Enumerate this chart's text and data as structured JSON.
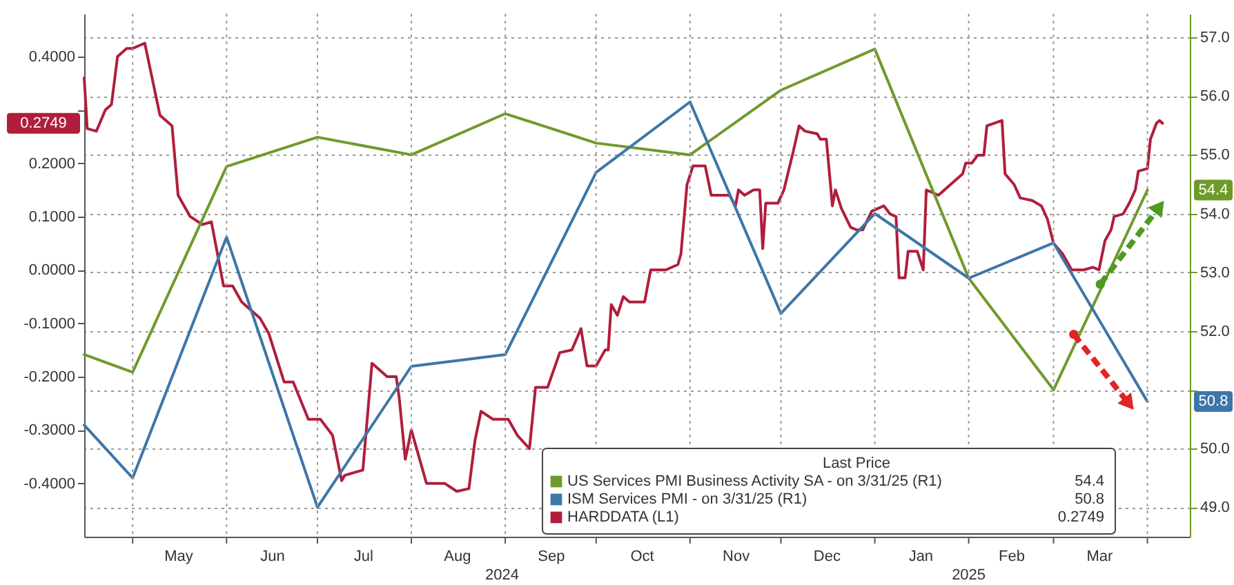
{
  "chart_data": {
    "type": "line",
    "grid": true,
    "legend": "bottom right",
    "legend_title": "Last Price",
    "xlim": [
      "2024-04-15",
      "2025-04-15"
    ],
    "xticks": [
      {
        "value": "2024-05-01",
        "label": null
      },
      {
        "value": "2024-05-16",
        "label": "May"
      },
      {
        "value": "2024-06-01",
        "label": null
      },
      {
        "value": "2024-06-16",
        "label": "Jun"
      },
      {
        "value": "2024-07-01",
        "label": null
      },
      {
        "value": "2024-07-16",
        "label": "Jul"
      },
      {
        "value": "2024-08-01",
        "label": null
      },
      {
        "value": "2024-08-16",
        "label": "Aug"
      },
      {
        "value": "2024-09-01",
        "label": null
      },
      {
        "value": "2024-09-16",
        "label": "Sep"
      },
      {
        "value": "2024-10-01",
        "label": null
      },
      {
        "value": "2024-10-16",
        "label": "Oct"
      },
      {
        "value": "2024-11-01",
        "label": null
      },
      {
        "value": "2024-11-16",
        "label": "Nov"
      },
      {
        "value": "2024-12-01",
        "label": null
      },
      {
        "value": "2024-12-16",
        "label": "Dec"
      },
      {
        "value": "2025-01-01",
        "label": null
      },
      {
        "value": "2025-01-16",
        "label": "Jan"
      },
      {
        "value": "2025-02-01",
        "label": null
      },
      {
        "value": "2025-02-15",
        "label": "Feb"
      },
      {
        "value": "2025-03-01",
        "label": null
      },
      {
        "value": "2025-03-16",
        "label": "Mar"
      },
      {
        "value": "2025-04-01",
        "label": null
      }
    ],
    "ylim": [
      -0.5,
      0.48
    ],
    "yticks": [
      {
        "value": -0.4,
        "label": "-0.4000"
      },
      {
        "value": -0.3,
        "label": "-0.3000"
      },
      {
        "value": -0.2,
        "label": "-0.2000"
      },
      {
        "value": -0.1,
        "label": "-0.1000"
      },
      {
        "value": 0,
        "label": "0.0000"
      },
      {
        "value": 0.1,
        "label": "0.1000"
      },
      {
        "value": 0.2,
        "label": "0.2000"
      },
      {
        "value": 0.3,
        "label": null
      },
      {
        "value": 0.4,
        "label": "0.4000"
      }
    ],
    "y2lim": [
      48.5,
      57.4
    ],
    "y2ticks": [
      {
        "value": 49,
        "label": "49.0"
      },
      {
        "value": 50,
        "label": "50.0"
      },
      {
        "value": 51,
        "label": null
      },
      {
        "value": 52,
        "label": "52.0"
      },
      {
        "value": 53,
        "label": "53.0"
      },
      {
        "value": 54,
        "label": "54.0"
      },
      {
        "value": 55,
        "label": "55.0"
      },
      {
        "value": 56,
        "label": "56.0"
      },
      {
        "value": 57,
        "label": "57.0"
      }
    ],
    "series": [
      {
        "name": "US Services PMI Business Activity SA - on 3/31/25 (R1)",
        "color": "#6f9a2a",
        "axis": "y2",
        "x": [
          "2024-04-15",
          "2024-05-01",
          "2024-06-01",
          "2024-07-01",
          "2024-08-01",
          "2024-09-01",
          "2024-10-01",
          "2024-11-01",
          "2024-12-01",
          "2025-01-01",
          "2025-02-01",
          "2025-03-01",
          "2025-04-01"
        ],
        "values": [
          51.6,
          51.3,
          54.8,
          55.3,
          55.0,
          55.7,
          55.2,
          55.0,
          56.1,
          56.8,
          52.9,
          51.0,
          54.4
        ]
      },
      {
        "name": "ISM Services PMI - on 3/31/25 (R1)",
        "color": "#3d76a8",
        "axis": "y2",
        "x": [
          "2024-04-15",
          "2024-05-01",
          "2024-06-01",
          "2024-07-01",
          "2024-08-01",
          "2024-09-01",
          "2024-10-01",
          "2024-11-01",
          "2024-12-01",
          "2025-01-01",
          "2025-02-01",
          "2025-03-01",
          "2025-04-01"
        ],
        "values": [
          50.4,
          49.5,
          53.6,
          49.0,
          51.4,
          51.6,
          54.7,
          55.9,
          52.3,
          54.0,
          52.9,
          53.5,
          50.8
        ]
      },
      {
        "name": "HARDDATA (L1)",
        "color": "#b01e3c",
        "x": [
          "2024-04-15",
          "2024-04-16",
          "2024-04-19",
          "2024-04-22",
          "2024-04-24",
          "2024-04-26",
          "2024-04-29",
          "2024-05-01",
          "2024-05-05",
          "2024-05-10",
          "2024-05-14",
          "2024-05-16",
          "2024-05-20",
          "2024-05-24",
          "2024-05-27",
          "2024-05-31",
          "2024-06-03",
          "2024-06-06",
          "2024-06-12",
          "2024-06-15",
          "2024-06-20",
          "2024-06-23",
          "2024-06-28",
          "2024-07-02",
          "2024-07-06",
          "2024-07-09",
          "2024-07-10",
          "2024-07-13",
          "2024-07-16",
          "2024-07-19",
          "2024-07-24",
          "2024-07-27",
          "2024-07-28",
          "2024-07-30",
          "2024-08-01",
          "2024-08-06",
          "2024-08-12",
          "2024-08-16",
          "2024-08-20",
          "2024-08-22",
          "2024-08-24",
          "2024-08-28",
          "2024-09-02",
          "2024-09-05",
          "2024-09-09",
          "2024-09-11",
          "2024-09-15",
          "2024-09-19",
          "2024-09-23",
          "2024-09-26",
          "2024-09-28",
          "2024-10-01",
          "2024-10-04",
          "2024-10-05",
          "2024-10-06",
          "2024-10-08",
          "2024-10-10",
          "2024-10-12",
          "2024-10-17",
          "2024-10-19",
          "2024-10-24",
          "2024-10-28",
          "2024-10-29",
          "2024-10-31",
          "2024-11-02",
          "2024-11-06",
          "2024-11-08",
          "2024-11-14",
          "2024-11-16",
          "2024-11-17",
          "2024-11-19",
          "2024-11-22",
          "2024-11-24",
          "2024-11-25",
          "2024-11-26",
          "2024-11-30",
          "2024-12-02",
          "2024-12-05",
          "2024-12-07",
          "2024-12-09",
          "2024-12-13",
          "2024-12-14",
          "2024-12-16",
          "2024-12-18",
          "2024-12-19",
          "2024-12-21",
          "2024-12-24",
          "2024-12-26",
          "2024-12-28",
          "2024-12-31",
          "2025-01-04",
          "2025-01-06",
          "2025-01-08",
          "2025-01-09",
          "2025-01-11",
          "2025-01-12",
          "2025-01-15",
          "2025-01-17",
          "2025-01-18",
          "2025-01-22",
          "2025-01-24",
          "2025-01-28",
          "2025-01-30",
          "2025-01-31",
          "2025-02-02",
          "2025-02-04",
          "2025-02-06",
          "2025-02-07",
          "2025-02-12",
          "2025-02-13",
          "2025-02-16",
          "2025-02-18",
          "2025-02-22",
          "2025-02-25",
          "2025-02-27",
          "2025-03-01",
          "2025-03-04",
          "2025-03-07",
          "2025-03-11",
          "2025-03-14",
          "2025-03-16",
          "2025-03-18",
          "2025-03-20",
          "2025-03-21",
          "2025-03-24",
          "2025-03-26",
          "2025-03-28",
          "2025-03-29",
          "2025-04-01",
          "2025-04-02",
          "2025-04-04",
          "2025-04-05",
          "2025-04-06"
        ],
        "values": [
          0.36,
          0.265,
          0.26,
          0.3,
          0.31,
          0.4,
          0.415,
          0.415,
          0.425,
          0.29,
          0.27,
          0.14,
          0.1,
          0.085,
          0.09,
          -0.03,
          -0.03,
          -0.06,
          -0.09,
          -0.12,
          -0.21,
          -0.21,
          -0.28,
          -0.28,
          -0.31,
          -0.395,
          -0.385,
          -0.38,
          -0.375,
          -0.175,
          -0.2,
          -0.2,
          -0.24,
          -0.355,
          -0.3,
          -0.4,
          -0.4,
          -0.415,
          -0.41,
          -0.32,
          -0.265,
          -0.28,
          -0.28,
          -0.31,
          -0.335,
          -0.22,
          -0.22,
          -0.155,
          -0.15,
          -0.11,
          -0.18,
          -0.18,
          -0.15,
          -0.15,
          -0.065,
          -0.085,
          -0.05,
          -0.06,
          -0.06,
          0.0,
          0.0,
          0.01,
          0.03,
          0.16,
          0.195,
          0.195,
          0.14,
          0.14,
          0.12,
          0.15,
          0.14,
          0.15,
          0.15,
          0.04,
          0.125,
          0.125,
          0.15,
          0.22,
          0.27,
          0.26,
          0.255,
          0.245,
          0.245,
          0.12,
          0.15,
          0.115,
          0.08,
          0.075,
          0.075,
          0.11,
          0.12,
          0.105,
          0.1,
          -0.015,
          -0.015,
          0.035,
          0.035,
          0.0,
          0.15,
          0.14,
          0.15,
          0.17,
          0.18,
          0.2,
          0.2,
          0.215,
          0.215,
          0.27,
          0.28,
          0.18,
          0.16,
          0.135,
          0.13,
          0.12,
          0.095,
          0.05,
          0.03,
          0.0,
          0.0,
          0.005,
          0.0,
          0.055,
          0.075,
          0.1,
          0.105,
          0.125,
          0.15,
          0.185,
          0.19,
          0.245,
          0.275,
          0.28,
          0.2749
        ]
      }
    ],
    "annotations": [
      "2024",
      "2025",
      "54.4",
      "50.8",
      "0.2749",
      "54.4",
      "50.8",
      "0.2749"
    ]
  }
}
